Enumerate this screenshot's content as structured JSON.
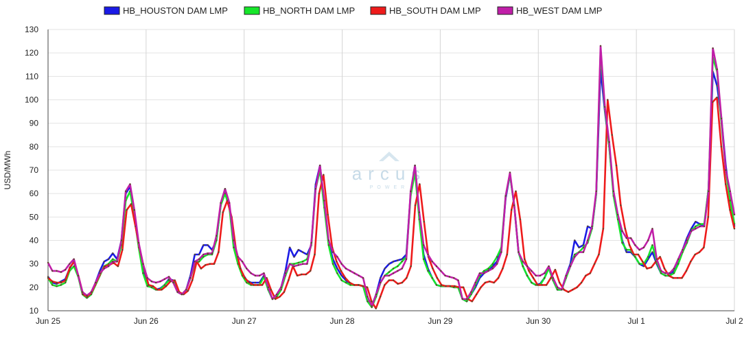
{
  "chart_data": {
    "type": "line",
    "title": "",
    "xlabel": "",
    "ylabel": "USD/MWh",
    "ylim": [
      10,
      130
    ],
    "yticks": [
      10,
      20,
      30,
      40,
      50,
      60,
      70,
      80,
      90,
      100,
      110,
      120,
      130
    ],
    "x_range_days": [
      0,
      7
    ],
    "x_ticks": [
      {
        "label": "Jun 25",
        "day": 0
      },
      {
        "label": "Jun 26",
        "day": 1
      },
      {
        "label": "Jun 27",
        "day": 2
      },
      {
        "label": "Jun 28",
        "day": 3
      },
      {
        "label": "Jun 29",
        "day": 4
      },
      {
        "label": "Jun 30",
        "day": 5
      },
      {
        "label": "Jul 1",
        "day": 6
      },
      {
        "label": "Jul 2",
        "day": 7
      }
    ],
    "grid": true,
    "legend_position": "top",
    "x_interval": "hourly",
    "series": [
      {
        "name": "HB_HOUSTON DAM LMP",
        "color": "#1a1ae6",
        "values": [
          24.5,
          22.0,
          21.5,
          22.5,
          23.5,
          28,
          31,
          25,
          17,
          15.5,
          17,
          22,
          27,
          31,
          32,
          34.5,
          32,
          40,
          60,
          63,
          52,
          38,
          27,
          21,
          20,
          19,
          19.5,
          21,
          23.5,
          23,
          18,
          17,
          19,
          25,
          34,
          34,
          38,
          38,
          36,
          40,
          55,
          62,
          55,
          38,
          31,
          26,
          23,
          22,
          22,
          22,
          25,
          19,
          15,
          17,
          20,
          27,
          37,
          33,
          36,
          35,
          34,
          38,
          64,
          72,
          55,
          39,
          32,
          28,
          25,
          23,
          21.5,
          21,
          21,
          20.5,
          14,
          12,
          17,
          24,
          28,
          30,
          31,
          31.5,
          32,
          34,
          60,
          72,
          50,
          34,
          28,
          24,
          21,
          20.5,
          20.5,
          20.5,
          20,
          20,
          15,
          14,
          17,
          20,
          24,
          26,
          27.5,
          29,
          31,
          36,
          58,
          68,
          55,
          35,
          29,
          25,
          22,
          21,
          21.5,
          24,
          28.5,
          23,
          19,
          19,
          25,
          30,
          40,
          37,
          38,
          46,
          45,
          60,
          113,
          95,
          80,
          60,
          50,
          40,
          35,
          35,
          33,
          30,
          29,
          32,
          35,
          30,
          26,
          25,
          25,
          27,
          32,
          36,
          41,
          45,
          48,
          47,
          46,
          62,
          112,
          106,
          92,
          72,
          57,
          46
        ]
      },
      {
        "name": "HB_NORTH DAM LMP",
        "color": "#16e62a",
        "values": [
          24,
          21,
          20.5,
          21,
          22,
          27,
          29,
          24.5,
          17,
          15.5,
          17,
          21,
          25,
          29,
          30,
          32,
          31,
          38,
          57,
          61,
          50,
          37,
          26,
          20.5,
          20,
          19,
          19,
          21,
          23,
          22.5,
          18,
          17,
          19,
          24,
          30,
          31,
          33,
          34,
          34,
          40,
          55,
          60,
          54,
          37,
          30,
          25,
          22,
          21,
          21,
          21,
          24.5,
          19,
          15,
          16,
          19,
          25,
          30,
          30,
          30.5,
          31,
          32,
          38,
          62,
          70,
          54,
          38,
          30,
          26,
          23,
          22,
          21,
          21,
          21,
          20.5,
          14,
          11.5,
          16,
          22,
          25,
          26.5,
          28,
          29,
          31,
          33,
          59,
          69,
          49,
          32,
          27,
          24,
          21,
          20.5,
          20.5,
          20.5,
          20,
          20,
          15,
          14,
          17,
          21,
          25,
          27,
          28,
          30,
          33,
          37,
          59,
          68,
          55,
          35,
          29,
          25,
          22,
          21,
          21,
          24,
          28,
          23,
          19,
          19,
          24,
          29,
          34,
          35,
          37,
          39,
          45,
          60,
          121,
          96,
          80,
          59,
          49,
          39,
          36,
          36,
          33,
          30,
          30,
          33,
          38,
          31,
          26,
          25,
          25,
          26,
          30,
          35,
          39,
          44,
          46,
          47,
          47,
          62,
          118,
          112,
          90,
          70,
          57,
          47
        ]
      },
      {
        "name": "HB_SOUTH DAM LMP",
        "color": "#ee1b1b",
        "values": [
          24,
          22.5,
          22,
          22,
          23,
          28.5,
          31,
          24.5,
          17,
          16,
          18,
          22,
          26,
          29,
          29.5,
          30.5,
          29,
          36,
          53,
          55.5,
          46,
          36,
          28,
          21,
          20.5,
          19,
          19,
          20.5,
          22.5,
          23,
          18,
          17,
          18.5,
          23,
          31,
          28,
          29.5,
          30,
          30,
          35,
          52,
          57,
          50,
          36,
          28,
          24,
          22,
          21,
          21,
          21,
          24,
          19,
          15,
          16,
          18,
          23,
          29,
          25,
          25.5,
          25.5,
          27,
          34,
          60,
          68,
          51,
          37,
          31,
          27,
          24,
          22,
          21,
          21,
          20.5,
          20,
          14,
          11,
          16,
          21,
          23,
          23,
          21.5,
          22,
          24,
          29,
          55,
          64,
          48,
          33,
          28,
          24,
          21,
          20.5,
          20.5,
          20.5,
          20,
          20,
          15,
          14,
          17,
          20,
          22,
          22.5,
          22,
          24,
          28,
          34,
          53,
          61,
          49,
          32,
          27,
          24,
          21,
          21,
          21,
          24,
          27.5,
          22,
          19,
          18,
          19,
          20,
          22,
          25,
          26,
          30,
          34,
          45,
          100,
          85,
          72,
          55,
          45,
          38,
          34,
          34,
          31,
          28,
          28.5,
          31,
          33,
          28,
          25,
          24,
          24,
          24,
          27,
          31,
          34,
          35,
          37,
          50,
          99,
          101,
          80,
          64,
          53,
          45
        ]
      },
      {
        "name": "HB_WEST DAM LMP",
        "color": "#c01ea8",
        "values": [
          30.5,
          27,
          27,
          26.5,
          27.5,
          30,
          32,
          25,
          18,
          16.5,
          18,
          22,
          26,
          28,
          29,
          31,
          31,
          40,
          61,
          64,
          53,
          39,
          30,
          24,
          22.5,
          22,
          22.5,
          23.5,
          24.5,
          22,
          18,
          17,
          19,
          24,
          31,
          32,
          34,
          34.5,
          34.5,
          42,
          56,
          62,
          56,
          40,
          33,
          31,
          28,
          26,
          25,
          25,
          26,
          20,
          15,
          17,
          20,
          26,
          30,
          29,
          29.5,
          30,
          30,
          39,
          62,
          72,
          57,
          40,
          35,
          33,
          30,
          28,
          27,
          26,
          25,
          24,
          16,
          12,
          17,
          22,
          25,
          25,
          26,
          27,
          28,
          32,
          61,
          72,
          52,
          38,
          34,
          31,
          29,
          27,
          25,
          24.5,
          24,
          23,
          15,
          15,
          18,
          22,
          26,
          26,
          27,
          28,
          30,
          35,
          59,
          69,
          55,
          35,
          31,
          29,
          27,
          25,
          25,
          26,
          29,
          24,
          20,
          19,
          25,
          29,
          33,
          35,
          35,
          40,
          46,
          61,
          123,
          97,
          82,
          61,
          51,
          44,
          41,
          41,
          38,
          36,
          37,
          40,
          45,
          32,
          27,
          26,
          26,
          28,
          32,
          36,
          40,
          44,
          45,
          46,
          46,
          61,
          122,
          113,
          92,
          70,
          61,
          51
        ]
      }
    ]
  },
  "watermark": {
    "brand": "arcus",
    "sub": "POWER"
  }
}
